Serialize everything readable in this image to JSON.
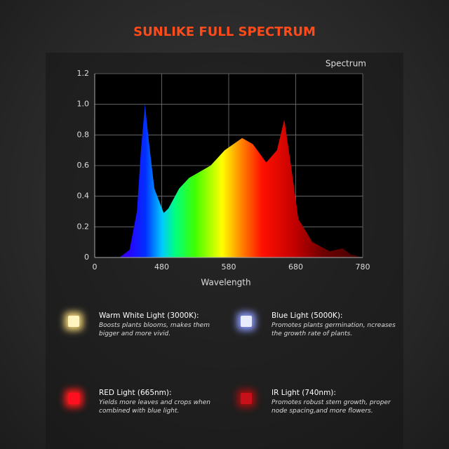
{
  "chart_data": {
    "type": "area",
    "title": "SUNLIKE FULL SPECTRUM",
    "legend": "Spectrum",
    "xlabel": "Wavelength",
    "x": [
      417,
      432,
      443,
      449,
      455,
      461,
      469,
      483,
      490,
      506,
      521,
      553,
      574,
      600,
      616,
      636,
      652,
      663,
      673,
      684,
      705,
      731,
      750,
      762,
      780
    ],
    "values": [
      0,
      0.05,
      0.3,
      0.7,
      1.0,
      0.75,
      0.45,
      0.29,
      0.32,
      0.45,
      0.52,
      0.6,
      0.7,
      0.78,
      0.74,
      0.62,
      0.7,
      0.9,
      0.6,
      0.25,
      0.1,
      0.04,
      0.06,
      0.02,
      0
    ],
    "xlim": [
      380,
      780
    ],
    "xticks": [
      {
        "value": 380,
        "label": "0"
      },
      480,
      580,
      680,
      780
    ],
    "ylim": [
      0,
      1.2
    ],
    "yticks": [
      0,
      0.2,
      0.4,
      0.6,
      0.8,
      {
        "value": 1,
        "label": "1.0"
      },
      1.2
    ],
    "grid": true
  },
  "features": [
    {
      "title": "Warm White Light (3000K):",
      "description": "Boosts plants blooms, makes them bigger and more vivid."
    },
    {
      "title": "Blue Light (5000K):",
      "description": "Promotes plants germination, ncreases the growth rate of plants."
    },
    {
      "title": "RED Light (665nm):",
      "description": "Yields more leaves and crops when combined with blue light."
    },
    {
      "title": "IR Light (740nm):",
      "description": "Promotes robust stem growth, proper node spacing,and more flowers."
    }
  ]
}
